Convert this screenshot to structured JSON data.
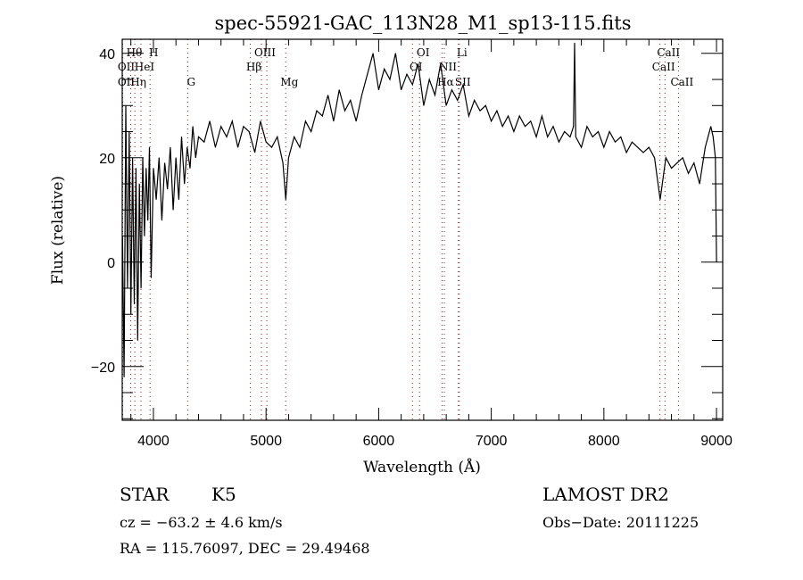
{
  "chart_data": {
    "type": "line",
    "title": "spec-55921-GAC_113N28_M1_sp13-115.fits",
    "xlabel": "Wavelength (Å)",
    "ylabel": "Flux (relative)",
    "xlim": [
      3723,
      9055
    ],
    "ylim": [
      -30.3,
      42.7
    ],
    "xticks": [
      4000,
      5000,
      6000,
      7000,
      8000,
      9000
    ],
    "xtick_labels": [
      "4000",
      "5000",
      "6000",
      "7000",
      "8000",
      "9000"
    ],
    "xminor_step": 200,
    "yticks": [
      -20,
      0,
      20,
      40
    ],
    "ytick_labels": [
      "−20",
      "0",
      "20",
      "40"
    ],
    "yminor_step": 5,
    "grid": false,
    "line_color": "#000000",
    "marker_color": "#8b1a1a",
    "series": [
      {
        "name": "flux",
        "x": [
          3725,
          3740,
          3755,
          3770,
          3785,
          3800,
          3815,
          3830,
          3845,
          3860,
          3875,
          3890,
          3905,
          3920,
          3935,
          3950,
          3965,
          3980,
          4000,
          4025,
          4050,
          4075,
          4100,
          4125,
          4150,
          4175,
          4200,
          4225,
          4250,
          4275,
          4300,
          4325,
          4350,
          4375,
          4400,
          4450,
          4500,
          4550,
          4600,
          4650,
          4700,
          4750,
          4800,
          4850,
          4900,
          4950,
          5000,
          5050,
          5100,
          5150,
          5175,
          5200,
          5250,
          5300,
          5350,
          5400,
          5450,
          5500,
          5550,
          5600,
          5650,
          5700,
          5750,
          5800,
          5850,
          5900,
          5950,
          6000,
          6050,
          6100,
          6150,
          6200,
          6250,
          6300,
          6350,
          6400,
          6450,
          6500,
          6550,
          6600,
          6650,
          6700,
          6750,
          6800,
          6850,
          6900,
          6950,
          7000,
          7050,
          7100,
          7150,
          7200,
          7250,
          7300,
          7350,
          7400,
          7450,
          7500,
          7550,
          7600,
          7650,
          7700,
          7730,
          7740,
          7750,
          7800,
          7850,
          7900,
          7950,
          8000,
          8050,
          8100,
          8150,
          8200,
          8250,
          8300,
          8350,
          8400,
          8450,
          8500,
          8550,
          8600,
          8650,
          8700,
          8750,
          8800,
          8850,
          8900,
          8950,
          8970,
          8990,
          9000
        ],
        "y": [
          5,
          -22,
          30,
          -5,
          25,
          -10,
          20,
          -8,
          18,
          -15,
          15,
          -5,
          20,
          5,
          18,
          8,
          22,
          -3,
          18,
          12,
          20,
          8,
          19,
          14,
          22,
          10,
          20,
          12,
          24,
          15,
          22,
          18,
          26,
          20,
          24,
          23,
          27,
          22,
          26,
          24,
          27,
          22,
          26,
          25,
          21,
          27,
          23,
          22,
          24,
          19,
          12,
          20,
          24,
          22,
          27,
          25,
          29,
          28,
          32,
          27,
          33,
          29,
          31,
          27,
          32,
          36,
          40,
          33,
          37,
          35,
          40,
          33,
          36,
          34,
          38,
          30,
          35,
          32,
          38,
          30,
          33,
          31,
          34,
          28,
          31,
          29,
          30,
          27,
          29,
          26,
          28,
          25,
          28,
          26,
          27,
          24,
          28,
          24,
          26,
          23,
          25,
          24,
          26,
          42,
          24,
          22,
          26,
          24,
          25,
          22,
          25,
          23,
          24,
          21,
          23,
          22,
          21,
          22,
          20,
          12,
          20,
          18,
          19,
          20,
          17,
          19,
          15,
          22,
          26,
          24,
          20,
          0
        ]
      }
    ],
    "line_markers": [
      {
        "wavelength": 3727,
        "label": "OII",
        "row": 2
      },
      {
        "wavelength": 3727,
        "label": "OII",
        "row": 3
      },
      {
        "wavelength": 3798,
        "label": "Hθ",
        "row": 1
      },
      {
        "wavelength": 3835,
        "label": "Hη",
        "row": 3
      },
      {
        "wavelength": 3889,
        "label": "HeI",
        "row": 2
      },
      {
        "wavelength": 3970,
        "label": "H",
        "row": 1
      },
      {
        "wavelength": 4304,
        "label": "G",
        "row": 3
      },
      {
        "wavelength": 4861,
        "label": "Hβ",
        "row": 2
      },
      {
        "wavelength": 4959,
        "label": "OIII",
        "row": 1
      },
      {
        "wavelength": 5007,
        "label": "",
        "row": 1
      },
      {
        "wavelength": 5175,
        "label": "Mg",
        "row": 3
      },
      {
        "wavelength": 6300,
        "label": "OI",
        "row": 2
      },
      {
        "wavelength": 6363,
        "label": "OI",
        "row": 1
      },
      {
        "wavelength": 6563,
        "label": "Hα",
        "row": 3
      },
      {
        "wavelength": 6583,
        "label": "NII",
        "row": 2
      },
      {
        "wavelength": 6708,
        "label": "Li",
        "row": 1
      },
      {
        "wavelength": 6716,
        "label": "SII",
        "row": 3
      },
      {
        "wavelength": 8498,
        "label": "CaII",
        "row": 2
      },
      {
        "wavelength": 8542,
        "label": "CaII",
        "row": 1
      },
      {
        "wavelength": 8662,
        "label": "CaII",
        "row": 3
      }
    ]
  },
  "info": {
    "object_class": "STAR",
    "subclass": "K5",
    "redshift": "cz = −63.2 ± 4.6 km/s",
    "coords": "RA = 115.76097, DEC =  29.49468",
    "survey": "LAMOST DR2",
    "obs_date": "Obs−Date: 20111225"
  }
}
